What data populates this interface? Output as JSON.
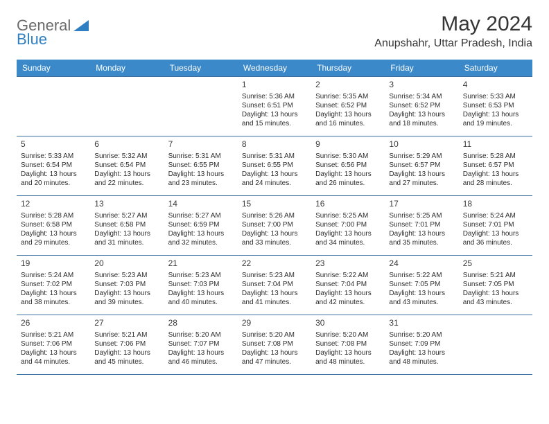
{
  "logo": {
    "general": "General",
    "blue": "Blue"
  },
  "title": "May 2024",
  "location": "Anupshahr, Uttar Pradesh, India",
  "colors": {
    "header_bg": "#3b89c9",
    "header_text": "#ffffff",
    "cell_border": "#3b6fa0",
    "text": "#2c2c2c",
    "title_text": "#353535",
    "logo_gray": "#6a6a6a",
    "logo_blue": "#2f7fc2"
  },
  "day_headers": [
    "Sunday",
    "Monday",
    "Tuesday",
    "Wednesday",
    "Thursday",
    "Friday",
    "Saturday"
  ],
  "weeks": [
    [
      null,
      null,
      null,
      {
        "n": "1",
        "sr": "5:36 AM",
        "ss": "6:51 PM",
        "dl": "13 hours and 15 minutes."
      },
      {
        "n": "2",
        "sr": "5:35 AM",
        "ss": "6:52 PM",
        "dl": "13 hours and 16 minutes."
      },
      {
        "n": "3",
        "sr": "5:34 AM",
        "ss": "6:52 PM",
        "dl": "13 hours and 18 minutes."
      },
      {
        "n": "4",
        "sr": "5:33 AM",
        "ss": "6:53 PM",
        "dl": "13 hours and 19 minutes."
      }
    ],
    [
      {
        "n": "5",
        "sr": "5:33 AM",
        "ss": "6:54 PM",
        "dl": "13 hours and 20 minutes."
      },
      {
        "n": "6",
        "sr": "5:32 AM",
        "ss": "6:54 PM",
        "dl": "13 hours and 22 minutes."
      },
      {
        "n": "7",
        "sr": "5:31 AM",
        "ss": "6:55 PM",
        "dl": "13 hours and 23 minutes."
      },
      {
        "n": "8",
        "sr": "5:31 AM",
        "ss": "6:55 PM",
        "dl": "13 hours and 24 minutes."
      },
      {
        "n": "9",
        "sr": "5:30 AM",
        "ss": "6:56 PM",
        "dl": "13 hours and 26 minutes."
      },
      {
        "n": "10",
        "sr": "5:29 AM",
        "ss": "6:57 PM",
        "dl": "13 hours and 27 minutes."
      },
      {
        "n": "11",
        "sr": "5:28 AM",
        "ss": "6:57 PM",
        "dl": "13 hours and 28 minutes."
      }
    ],
    [
      {
        "n": "12",
        "sr": "5:28 AM",
        "ss": "6:58 PM",
        "dl": "13 hours and 29 minutes."
      },
      {
        "n": "13",
        "sr": "5:27 AM",
        "ss": "6:58 PM",
        "dl": "13 hours and 31 minutes."
      },
      {
        "n": "14",
        "sr": "5:27 AM",
        "ss": "6:59 PM",
        "dl": "13 hours and 32 minutes."
      },
      {
        "n": "15",
        "sr": "5:26 AM",
        "ss": "7:00 PM",
        "dl": "13 hours and 33 minutes."
      },
      {
        "n": "16",
        "sr": "5:25 AM",
        "ss": "7:00 PM",
        "dl": "13 hours and 34 minutes."
      },
      {
        "n": "17",
        "sr": "5:25 AM",
        "ss": "7:01 PM",
        "dl": "13 hours and 35 minutes."
      },
      {
        "n": "18",
        "sr": "5:24 AM",
        "ss": "7:01 PM",
        "dl": "13 hours and 36 minutes."
      }
    ],
    [
      {
        "n": "19",
        "sr": "5:24 AM",
        "ss": "7:02 PM",
        "dl": "13 hours and 38 minutes."
      },
      {
        "n": "20",
        "sr": "5:23 AM",
        "ss": "7:03 PM",
        "dl": "13 hours and 39 minutes."
      },
      {
        "n": "21",
        "sr": "5:23 AM",
        "ss": "7:03 PM",
        "dl": "13 hours and 40 minutes."
      },
      {
        "n": "22",
        "sr": "5:23 AM",
        "ss": "7:04 PM",
        "dl": "13 hours and 41 minutes."
      },
      {
        "n": "23",
        "sr": "5:22 AM",
        "ss": "7:04 PM",
        "dl": "13 hours and 42 minutes."
      },
      {
        "n": "24",
        "sr": "5:22 AM",
        "ss": "7:05 PM",
        "dl": "13 hours and 43 minutes."
      },
      {
        "n": "25",
        "sr": "5:21 AM",
        "ss": "7:05 PM",
        "dl": "13 hours and 43 minutes."
      }
    ],
    [
      {
        "n": "26",
        "sr": "5:21 AM",
        "ss": "7:06 PM",
        "dl": "13 hours and 44 minutes."
      },
      {
        "n": "27",
        "sr": "5:21 AM",
        "ss": "7:06 PM",
        "dl": "13 hours and 45 minutes."
      },
      {
        "n": "28",
        "sr": "5:20 AM",
        "ss": "7:07 PM",
        "dl": "13 hours and 46 minutes."
      },
      {
        "n": "29",
        "sr": "5:20 AM",
        "ss": "7:08 PM",
        "dl": "13 hours and 47 minutes."
      },
      {
        "n": "30",
        "sr": "5:20 AM",
        "ss": "7:08 PM",
        "dl": "13 hours and 48 minutes."
      },
      {
        "n": "31",
        "sr": "5:20 AM",
        "ss": "7:09 PM",
        "dl": "13 hours and 48 minutes."
      },
      null
    ]
  ],
  "labels": {
    "sunrise": "Sunrise:",
    "sunset": "Sunset:",
    "daylight": "Daylight:"
  }
}
